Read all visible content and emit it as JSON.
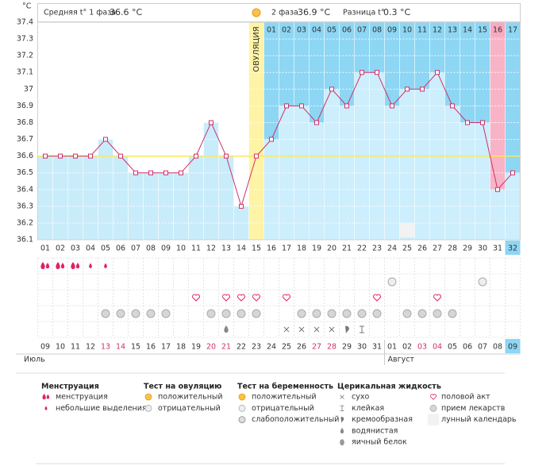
{
  "header": {
    "unit": "°C",
    "phase1_label": "Средняя t° 1 фаза",
    "phase1_avg": {
      "value": 36.6,
      "label": "36.6 °C"
    },
    "phase2_label": "2 фаза",
    "phase2_avg": {
      "value": 36.9,
      "label": "36.9 °C"
    },
    "diff_label": "Разница t°",
    "diff": {
      "value": 0.3,
      "label": "0.3 °C"
    },
    "ovulation_label": "ОВУЛЯЦИЯ"
  },
  "chart_data": {
    "type": "line",
    "categories": [
      "01",
      "02",
      "03",
      "04",
      "05",
      "06",
      "07",
      "08",
      "09",
      "10",
      "11",
      "12",
      "13",
      "14",
      "15",
      "16",
      "17",
      "18",
      "19",
      "20",
      "21",
      "22",
      "23",
      "24",
      "25",
      "26",
      "27",
      "28",
      "29",
      "30",
      "31",
      "32"
    ],
    "values": [
      36.6,
      36.6,
      36.6,
      36.6,
      36.7,
      36.6,
      36.5,
      36.5,
      36.5,
      36.5,
      36.6,
      36.8,
      36.6,
      36.3,
      36.6,
      36.7,
      36.9,
      36.9,
      36.8,
      37.0,
      36.9,
      37.1,
      37.1,
      36.9,
      37.0,
      37.0,
      37.1,
      36.9,
      36.8,
      36.8,
      36.4,
      36.5
    ],
    "color": "#d0306a",
    "ylim": [
      36.1,
      37.4
    ],
    "yticks": [
      36.1,
      36.2,
      36.3,
      36.4,
      36.5,
      36.6,
      36.7,
      36.8,
      36.9,
      37,
      37.1,
      37.2,
      37.3,
      37.4
    ],
    "grid": true,
    "phase2_days": [
      "01",
      "02",
      "03",
      "04",
      "05",
      "06",
      "07",
      "08",
      "09",
      "10",
      "11",
      "12",
      "13",
      "14",
      "15",
      "16",
      "17"
    ]
  },
  "dates": [
    "09",
    "10",
    "11",
    "12",
    "13",
    "14",
    "15",
    "16",
    "17",
    "18",
    "19",
    "20",
    "21",
    "22",
    "23",
    "24",
    "25",
    "26",
    "27",
    "28",
    "29",
    "30",
    "31",
    "01",
    "02",
    "03",
    "04",
    "05",
    "06",
    "07",
    "08",
    "09"
  ],
  "date_colors": [
    "#333",
    "#333",
    "#333",
    "#333",
    "#d0306a",
    "#d0306a",
    "#333",
    "#333",
    "#333",
    "#333",
    "#333",
    "#d0306a",
    "#d0306a",
    "#333",
    "#333",
    "#333",
    "#333",
    "#333",
    "#d0306a",
    "#d0306a",
    "#333",
    "#333",
    "#333",
    "#333",
    "#333",
    "#d0306a",
    "#d0306a",
    "#333",
    "#333",
    "#333",
    "#333",
    "#333"
  ],
  "months": [
    "Июль",
    "Август"
  ],
  "observations": {
    "menstruation": [
      "менструация",
      "менструация",
      "менструация",
      "небольшие выделения",
      "небольшие выделения",
      null,
      null,
      null,
      null,
      null,
      null,
      null,
      null,
      null,
      null,
      null,
      null,
      null,
      null,
      null,
      null,
      null,
      null,
      null,
      null,
      null,
      null,
      null,
      null,
      null,
      null,
      null
    ],
    "pregnancy_test": [
      null,
      null,
      null,
      null,
      null,
      null,
      null,
      null,
      null,
      null,
      null,
      null,
      null,
      null,
      null,
      null,
      null,
      null,
      null,
      null,
      null,
      null,
      null,
      "отрицательный",
      null,
      null,
      null,
      null,
      null,
      "отрицательный",
      null,
      null
    ],
    "sex": [
      null,
      null,
      null,
      null,
      null,
      null,
      null,
      null,
      null,
      null,
      "половой акт",
      null,
      "половой акт",
      "половой акт",
      "половой акт",
      null,
      "половой акт",
      null,
      null,
      null,
      null,
      null,
      "половой акт",
      null,
      null,
      null,
      "половой акт",
      null,
      null,
      null,
      null,
      null
    ],
    "medication": [
      null,
      null,
      null,
      null,
      "прием лекарств",
      "прием лекарств",
      "прием лекарств",
      "прием лекарств",
      "прием лекарств",
      null,
      null,
      "прием лекарств",
      "прием лекарств",
      "прием лекарств",
      "прием лекарств",
      null,
      null,
      "прием лекарств",
      "прием лекарств",
      "прием лекарств",
      "прием лекарств",
      "прием лекарств",
      "прием лекарств",
      null,
      "прием лекарств",
      "прием лекарств",
      "прием лекарств",
      "прием лекарств",
      null,
      null,
      null,
      null
    ],
    "cervical": [
      null,
      null,
      null,
      null,
      null,
      null,
      null,
      null,
      null,
      null,
      null,
      null,
      "водянистая",
      null,
      null,
      null,
      "сухо",
      "сухо",
      "сухо",
      "сухо",
      "кремообразная",
      "клейкая",
      null,
      null,
      null,
      null,
      null,
      null,
      null,
      null,
      null,
      null
    ],
    "lunar": [
      null,
      null,
      null,
      null,
      null,
      null,
      null,
      null,
      null,
      null,
      null,
      null,
      null,
      null,
      null,
      null,
      null,
      null,
      null,
      null,
      null,
      null,
      null,
      null,
      "лунный календарь",
      null,
      null,
      null,
      null,
      null,
      null,
      null
    ]
  },
  "legend": {
    "groups": [
      {
        "title": "Менструация",
        "items": [
          "менструация",
          "небольшие выделения"
        ]
      },
      {
        "title": "Тест на овуляцию",
        "items": [
          "положительный",
          "отрицательный"
        ]
      },
      {
        "title": "Тест на беременность",
        "items": [
          "положительный",
          "отрицательный",
          "слабоположительный"
        ]
      },
      {
        "title": "Церикальная жидкость",
        "items": [
          "сухо",
          "клейкая",
          "кремообразная",
          "водянистая",
          "яичный белок"
        ]
      }
    ],
    "other": [
      "половой акт",
      "прием лекарств",
      "лунный календарь"
    ]
  }
}
